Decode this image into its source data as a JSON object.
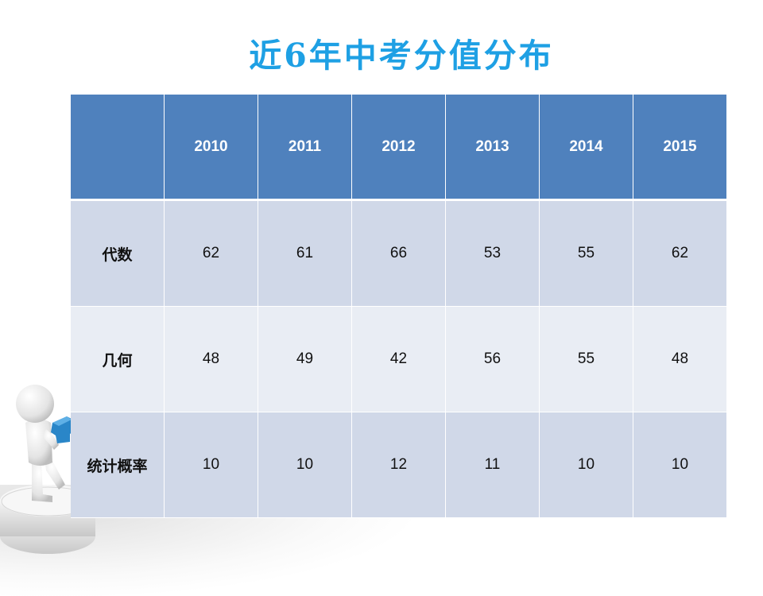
{
  "slide": {
    "title": "近6年中考分值分布"
  },
  "table": {
    "corner": "",
    "years": [
      "2010",
      "2011",
      "2012",
      "2013",
      "2014",
      "2015"
    ],
    "rows": [
      {
        "label": "代数",
        "values": [
          "62",
          "61",
          "66",
          "53",
          "55",
          "62"
        ]
      },
      {
        "label": "几何",
        "values": [
          "48",
          "49",
          "42",
          "56",
          "55",
          "48"
        ]
      },
      {
        "label": "统计概率",
        "values": [
          "10",
          "10",
          "12",
          "11",
          "10",
          "10"
        ]
      }
    ]
  },
  "colors": {
    "title": "#1ea0e4",
    "header_bg": "#4f81bd",
    "row_dark": "#d0d8e8",
    "row_light": "#e9edf4",
    "puzzle": "#2a86c8"
  },
  "decor": {
    "figure_icon": "person-holding-puzzle-icon"
  }
}
